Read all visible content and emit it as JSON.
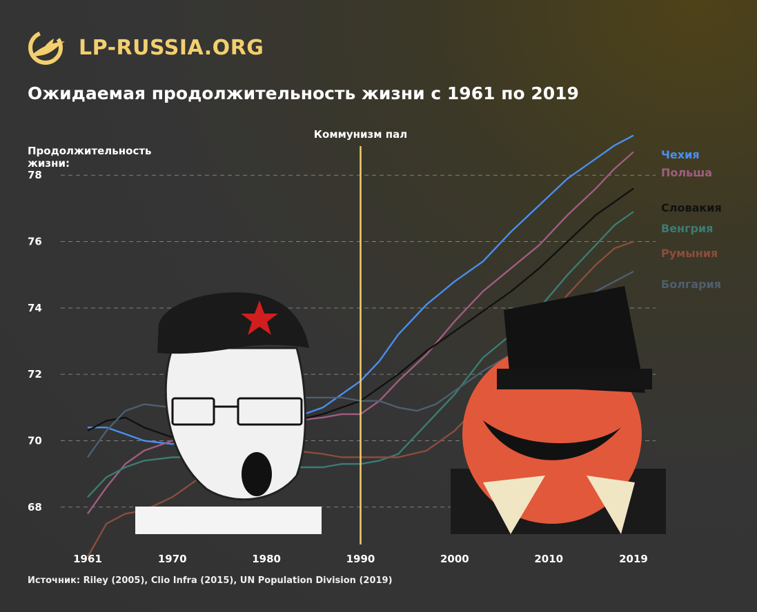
{
  "brand": {
    "name": "LP-RUSSIA.ORG",
    "logo_icon": "bird-in-circle-logo",
    "accent": "#f3cf6e"
  },
  "title": "Ожидаемая продолжительность жизни с 1961 по 2019",
  "source": "Источник: Riley (2005), Clio Infra (2015), UN Population Division (2019)",
  "chart_data": {
    "type": "line",
    "title": "Ожидаемая продолжительность жизни с 1961 по 2019",
    "ylabel": "Продолжительность жизни:",
    "xlabel": "",
    "xlim": [
      1961,
      2019
    ],
    "ylim": [
      66.5,
      79.5
    ],
    "x_ticks": [
      "1961",
      "1970",
      "1980",
      "1990",
      "2000",
      "2010",
      "2019"
    ],
    "y_ticks": [
      "68",
      "70",
      "72",
      "74",
      "76",
      "78"
    ],
    "grid": "dashed horizontal",
    "annotation": {
      "label": "Коммунизм пал",
      "x": 1990,
      "color": "#f3cf6e"
    },
    "series": [
      {
        "name": "Чехия",
        "color": "#4a8ff0",
        "points": [
          [
            1961,
            70.4
          ],
          [
            1963,
            70.4
          ],
          [
            1965,
            70.2
          ],
          [
            1967,
            70.0
          ],
          [
            1970,
            69.9
          ],
          [
            1973,
            70.1
          ],
          [
            1976,
            70.4
          ],
          [
            1980,
            70.7
          ],
          [
            1983,
            70.7
          ],
          [
            1986,
            71.0
          ],
          [
            1988,
            71.4
          ],
          [
            1990,
            71.8
          ],
          [
            1992,
            72.4
          ],
          [
            1994,
            73.2
          ],
          [
            1997,
            74.1
          ],
          [
            2000,
            74.8
          ],
          [
            2003,
            75.4
          ],
          [
            2006,
            76.3
          ],
          [
            2009,
            77.1
          ],
          [
            2012,
            77.9
          ],
          [
            2015,
            78.5
          ],
          [
            2017,
            78.9
          ],
          [
            2019,
            79.2
          ]
        ]
      },
      {
        "name": "Польша",
        "color": "#a05d82",
        "points": [
          [
            1961,
            67.8
          ],
          [
            1963,
            68.6
          ],
          [
            1965,
            69.3
          ],
          [
            1967,
            69.7
          ],
          [
            1970,
            70.0
          ],
          [
            1973,
            70.3
          ],
          [
            1976,
            70.4
          ],
          [
            1980,
            70.5
          ],
          [
            1983,
            70.6
          ],
          [
            1986,
            70.7
          ],
          [
            1988,
            70.8
          ],
          [
            1990,
            70.8
          ],
          [
            1992,
            71.2
          ],
          [
            1994,
            71.8
          ],
          [
            1997,
            72.6
          ],
          [
            2000,
            73.6
          ],
          [
            2003,
            74.5
          ],
          [
            2006,
            75.2
          ],
          [
            2009,
            75.9
          ],
          [
            2012,
            76.8
          ],
          [
            2015,
            77.6
          ],
          [
            2017,
            78.2
          ],
          [
            2019,
            78.7
          ]
        ]
      },
      {
        "name": "Словакия",
        "color": "#111111",
        "points": [
          [
            1961,
            70.3
          ],
          [
            1963,
            70.6
          ],
          [
            1965,
            70.7
          ],
          [
            1967,
            70.4
          ],
          [
            1970,
            70.1
          ],
          [
            1973,
            70.2
          ],
          [
            1976,
            70.4
          ],
          [
            1980,
            70.5
          ],
          [
            1983,
            70.6
          ],
          [
            1986,
            70.8
          ],
          [
            1988,
            71.0
          ],
          [
            1990,
            71.2
          ],
          [
            1992,
            71.6
          ],
          [
            1994,
            72.0
          ],
          [
            1997,
            72.7
          ],
          [
            2000,
            73.3
          ],
          [
            2003,
            73.9
          ],
          [
            2006,
            74.5
          ],
          [
            2009,
            75.2
          ],
          [
            2012,
            76.0
          ],
          [
            2015,
            76.8
          ],
          [
            2017,
            77.2
          ],
          [
            2019,
            77.6
          ]
        ]
      },
      {
        "name": "Венгрия",
        "color": "#3c7c74",
        "points": [
          [
            1961,
            68.3
          ],
          [
            1963,
            68.9
          ],
          [
            1965,
            69.2
          ],
          [
            1967,
            69.4
          ],
          [
            1970,
            69.5
          ],
          [
            1973,
            69.5
          ],
          [
            1976,
            69.5
          ],
          [
            1980,
            69.3
          ],
          [
            1983,
            69.2
          ],
          [
            1986,
            69.2
          ],
          [
            1988,
            69.3
          ],
          [
            1990,
            69.3
          ],
          [
            1992,
            69.4
          ],
          [
            1994,
            69.6
          ],
          [
            1997,
            70.5
          ],
          [
            2000,
            71.4
          ],
          [
            2003,
            72.5
          ],
          [
            2006,
            73.2
          ],
          [
            2009,
            74.0
          ],
          [
            2012,
            75.0
          ],
          [
            2015,
            75.9
          ],
          [
            2017,
            76.5
          ],
          [
            2019,
            76.9
          ]
        ]
      },
      {
        "name": "Румыния",
        "color": "#8a4e3c",
        "points": [
          [
            1961,
            66.5
          ],
          [
            1963,
            67.5
          ],
          [
            1965,
            67.8
          ],
          [
            1967,
            67.9
          ],
          [
            1970,
            68.3
          ],
          [
            1973,
            68.9
          ],
          [
            1976,
            69.4
          ],
          [
            1980,
            69.6
          ],
          [
            1983,
            69.7
          ],
          [
            1986,
            69.6
          ],
          [
            1988,
            69.5
          ],
          [
            1990,
            69.5
          ],
          [
            1992,
            69.5
          ],
          [
            1994,
            69.5
          ],
          [
            1997,
            69.7
          ],
          [
            2000,
            70.3
          ],
          [
            2003,
            71.2
          ],
          [
            2006,
            72.3
          ],
          [
            2009,
            73.3
          ],
          [
            2012,
            74.4
          ],
          [
            2015,
            75.3
          ],
          [
            2017,
            75.8
          ],
          [
            2019,
            76.0
          ]
        ]
      },
      {
        "name": "Болгария",
        "color": "#4e5f6e",
        "points": [
          [
            1961,
            69.5
          ],
          [
            1963,
            70.3
          ],
          [
            1965,
            70.9
          ],
          [
            1967,
            71.1
          ],
          [
            1970,
            71.0
          ],
          [
            1973,
            71.1
          ],
          [
            1976,
            71.2
          ],
          [
            1980,
            71.2
          ],
          [
            1983,
            71.3
          ],
          [
            1986,
            71.3
          ],
          [
            1988,
            71.3
          ],
          [
            1990,
            71.2
          ],
          [
            1992,
            71.2
          ],
          [
            1994,
            71.0
          ],
          [
            1996,
            70.9
          ],
          [
            1998,
            71.1
          ],
          [
            2000,
            71.5
          ],
          [
            2003,
            72.1
          ],
          [
            2006,
            72.6
          ],
          [
            2009,
            73.4
          ],
          [
            2012,
            74.0
          ],
          [
            2015,
            74.5
          ],
          [
            2017,
            74.8
          ],
          [
            2019,
            75.1
          ]
        ]
      }
    ]
  }
}
